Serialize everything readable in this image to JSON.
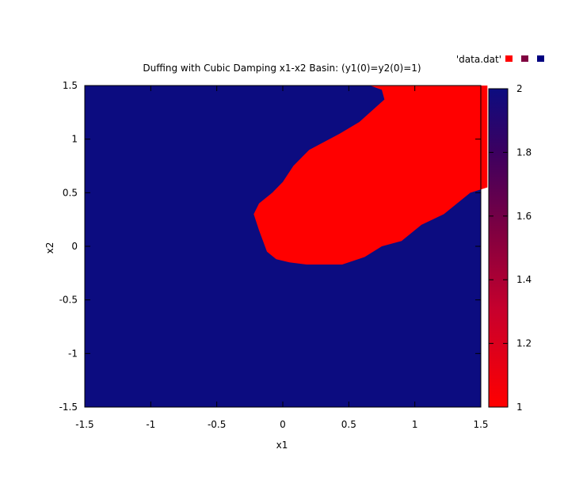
{
  "chart_data": {
    "type": "heatmap",
    "title": "Duffing with Cubic Damping x1-x2 Basin: (y1(0)=y2(0)=1)",
    "xlabel": "x1",
    "ylabel": "x2",
    "xlim": [
      -1.5,
      1.5
    ],
    "ylim": [
      -1.5,
      1.5
    ],
    "x_ticks": [
      "-1.5",
      "-1",
      "-0.5",
      "0",
      "0.5",
      "1",
      "1.5"
    ],
    "y_ticks": [
      "1.5",
      "1",
      "0.5",
      "0",
      "-0.5",
      "-1",
      "-1.5"
    ],
    "legend": {
      "label": "'data.dat'",
      "position": "top-right",
      "swatches": [
        "#ff0000",
        "#800040",
        "#000080"
      ]
    },
    "colorbar": {
      "min": 1,
      "max": 2,
      "ticks": [
        "2",
        "1.8",
        "1.6",
        "1.4",
        "1.2",
        "1"
      ],
      "low_color": "#ff0000",
      "high_color": "#0c0c80"
    },
    "cells": {
      "values": [
        1,
        2
      ],
      "dominant_value": 2,
      "low_value_color": "#ff0000",
      "high_value_color": "#0c0c80"
    },
    "red_region_boundary_x2_x1": [
      [
        1.5,
        0.55
      ],
      [
        1.5,
        0.66
      ],
      [
        1.46,
        0.75
      ],
      [
        1.37,
        0.77
      ],
      [
        1.16,
        0.58
      ],
      [
        1.05,
        0.43
      ],
      [
        0.9,
        0.2
      ],
      [
        0.75,
        0.08
      ],
      [
        0.6,
        0.0
      ],
      [
        0.5,
        -0.08
      ],
      [
        0.4,
        -0.18
      ],
      [
        0.3,
        -0.22
      ],
      [
        0.15,
        -0.18
      ],
      [
        0.05,
        -0.15
      ],
      [
        -0.05,
        -0.12
      ],
      [
        -0.12,
        -0.05
      ],
      [
        -0.15,
        0.05
      ],
      [
        -0.17,
        0.18
      ],
      [
        -0.17,
        0.45
      ],
      [
        -0.1,
        0.62
      ],
      [
        0.0,
        0.75
      ],
      [
        0.05,
        0.9
      ],
      [
        0.2,
        1.05
      ],
      [
        0.3,
        1.22
      ],
      [
        0.5,
        1.42
      ],
      [
        0.55,
        1.55
      ],
      [
        1.5,
        1.55
      ]
    ],
    "grid": false
  }
}
